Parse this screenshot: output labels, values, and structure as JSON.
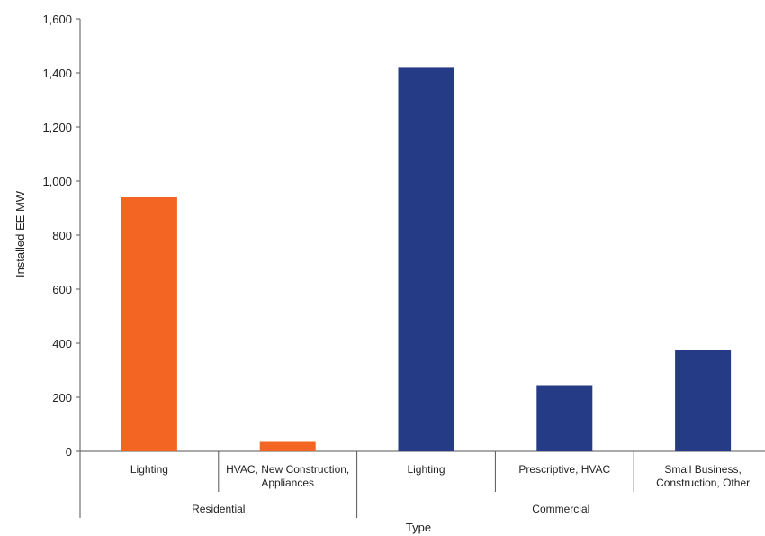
{
  "chart_data": {
    "type": "bar",
    "xlabel": "Type",
    "ylabel": "Installed EE MW",
    "ylim": [
      0,
      1600
    ],
    "yticks": [
      0,
      200,
      400,
      600,
      800,
      1000,
      1200,
      1400,
      1600
    ],
    "ytick_labels": [
      "0",
      "200",
      "400",
      "600",
      "800",
      "1,000",
      "1,200",
      "1,400",
      "1,600"
    ],
    "grid": false,
    "legend": "none",
    "groups": [
      {
        "name": "Residential",
        "color": "#f26522",
        "categories": [
          {
            "label_lines": [
              "Lighting"
            ],
            "value": 940
          },
          {
            "label_lines": [
              "HVAC, New Construction,",
              "Appliances"
            ],
            "value": 35
          }
        ]
      },
      {
        "name": "Commercial",
        "color": "#253b86",
        "categories": [
          {
            "label_lines": [
              "Lighting"
            ],
            "value": 1422
          },
          {
            "label_lines": [
              "Prescriptive, HVAC"
            ],
            "value": 245
          },
          {
            "label_lines": [
              "Small Business,",
              "Construction, Other"
            ],
            "value": 375
          }
        ]
      }
    ]
  }
}
